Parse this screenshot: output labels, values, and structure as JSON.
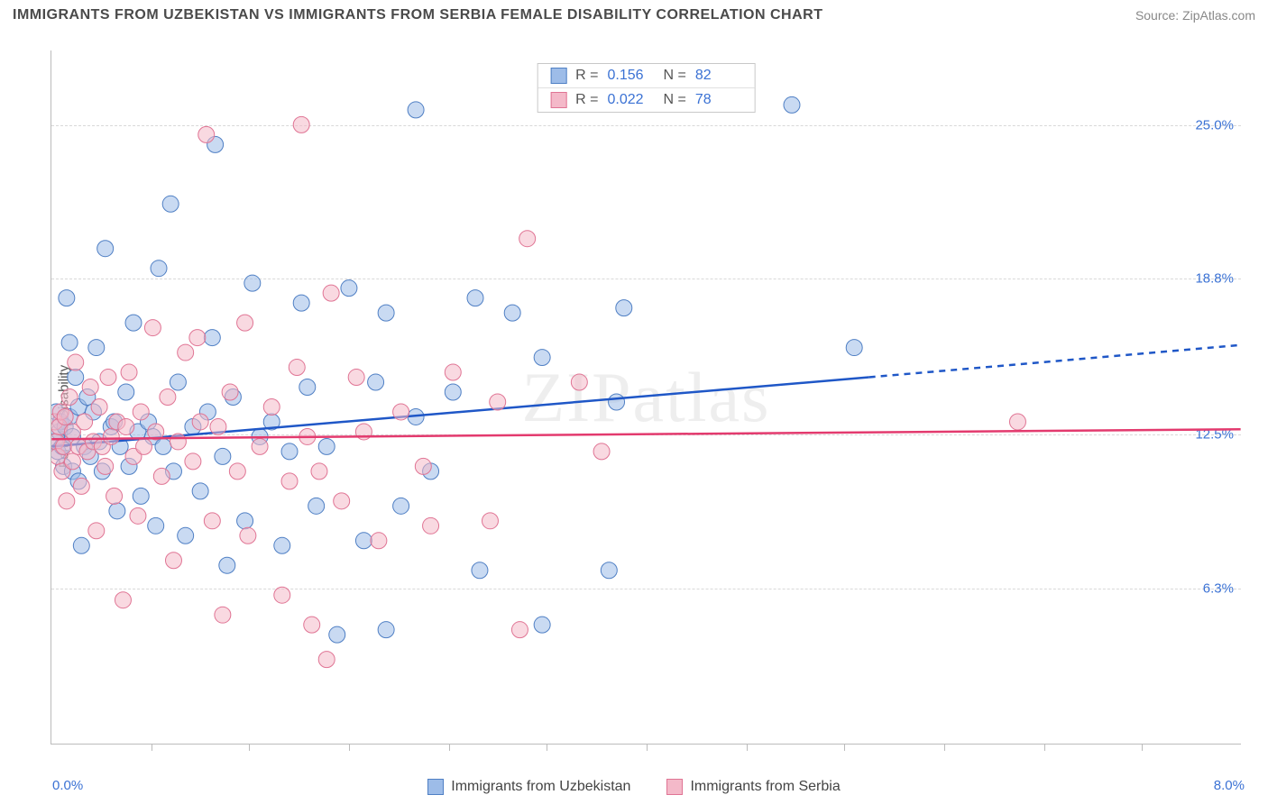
{
  "title": "IMMIGRANTS FROM UZBEKISTAN VS IMMIGRANTS FROM SERBIA FEMALE DISABILITY CORRELATION CHART",
  "source_label": "Source: ZipAtlas.com",
  "watermark": "ZIPatlas",
  "y_axis_label": "Female Disability",
  "chart": {
    "type": "scatter-with-regression",
    "xlim": [
      0.0,
      8.0
    ],
    "ylim": [
      0.0,
      28.0
    ],
    "x_min_label": "0.0%",
    "x_max_label": "8.0%",
    "y_ticks": [
      {
        "value": 6.3,
        "label": "6.3%"
      },
      {
        "value": 12.5,
        "label": "12.5%"
      },
      {
        "value": 18.8,
        "label": "18.8%"
      },
      {
        "value": 25.0,
        "label": "25.0%"
      }
    ],
    "x_tick_positions": [
      0.67,
      1.33,
      2.0,
      2.67,
      3.33,
      4.0,
      4.67,
      5.33,
      6.0,
      6.67,
      7.33
    ],
    "background_color": "#ffffff",
    "grid_color": "#d8d8d8",
    "axis_color": "#bbbbbb",
    "tick_label_color": "#3b72d4",
    "marker_radius": 9,
    "marker_opacity": 0.55,
    "line_width": 2.5,
    "series": [
      {
        "name": "Immigrants from Uzbekistan",
        "key": "uzbekistan",
        "fill": "#9dbce8",
        "stroke": "#4f7fc4",
        "line_color": "#1f57c7",
        "R": "0.156",
        "N": "82",
        "regression": {
          "x1": 0.0,
          "y1": 12.0,
          "x2": 5.5,
          "y2": 14.8,
          "x2_dash": 8.0,
          "y2_dash": 16.1
        },
        "points": [
          [
            0.02,
            12.2
          ],
          [
            0.03,
            13.4
          ],
          [
            0.04,
            11.8
          ],
          [
            0.05,
            12.6
          ],
          [
            0.06,
            13.0
          ],
          [
            0.07,
            12.0
          ],
          [
            0.08,
            11.2
          ],
          [
            0.09,
            12.8
          ],
          [
            0.1,
            18.0
          ],
          [
            0.12,
            16.2
          ],
          [
            0.12,
            13.2
          ],
          [
            0.14,
            11.0
          ],
          [
            0.14,
            12.4
          ],
          [
            0.16,
            14.8
          ],
          [
            0.18,
            10.6
          ],
          [
            0.18,
            13.6
          ],
          [
            0.2,
            8.0
          ],
          [
            0.22,
            12.0
          ],
          [
            0.24,
            14.0
          ],
          [
            0.26,
            11.6
          ],
          [
            0.28,
            13.4
          ],
          [
            0.3,
            16.0
          ],
          [
            0.32,
            12.2
          ],
          [
            0.34,
            11.0
          ],
          [
            0.36,
            20.0
          ],
          [
            0.4,
            12.8
          ],
          [
            0.42,
            13.0
          ],
          [
            0.44,
            9.4
          ],
          [
            0.46,
            12.0
          ],
          [
            0.5,
            14.2
          ],
          [
            0.52,
            11.2
          ],
          [
            0.55,
            17.0
          ],
          [
            0.58,
            12.6
          ],
          [
            0.6,
            10.0
          ],
          [
            0.65,
            13.0
          ],
          [
            0.68,
            12.4
          ],
          [
            0.7,
            8.8
          ],
          [
            0.72,
            19.2
          ],
          [
            0.75,
            12.0
          ],
          [
            0.8,
            21.8
          ],
          [
            0.82,
            11.0
          ],
          [
            0.85,
            14.6
          ],
          [
            0.9,
            8.4
          ],
          [
            0.95,
            12.8
          ],
          [
            1.0,
            10.2
          ],
          [
            1.05,
            13.4
          ],
          [
            1.08,
            16.4
          ],
          [
            1.1,
            24.2
          ],
          [
            1.15,
            11.6
          ],
          [
            1.18,
            7.2
          ],
          [
            1.22,
            14.0
          ],
          [
            1.3,
            9.0
          ],
          [
            1.35,
            18.6
          ],
          [
            1.4,
            12.4
          ],
          [
            1.48,
            13.0
          ],
          [
            1.55,
            8.0
          ],
          [
            1.6,
            11.8
          ],
          [
            1.68,
            17.8
          ],
          [
            1.72,
            14.4
          ],
          [
            1.78,
            9.6
          ],
          [
            1.85,
            12.0
          ],
          [
            1.92,
            4.4
          ],
          [
            2.0,
            18.4
          ],
          [
            2.1,
            8.2
          ],
          [
            2.18,
            14.6
          ],
          [
            2.25,
            17.4
          ],
          [
            2.25,
            4.6
          ],
          [
            2.35,
            9.6
          ],
          [
            2.45,
            13.2
          ],
          [
            2.45,
            25.6
          ],
          [
            2.55,
            11.0
          ],
          [
            2.7,
            14.2
          ],
          [
            2.85,
            18.0
          ],
          [
            2.88,
            7.0
          ],
          [
            3.1,
            17.4
          ],
          [
            3.3,
            15.6
          ],
          [
            3.3,
            4.8
          ],
          [
            3.75,
            7.0
          ],
          [
            3.8,
            13.8
          ],
          [
            3.85,
            17.6
          ],
          [
            4.98,
            25.8
          ],
          [
            5.4,
            16.0
          ]
        ]
      },
      {
        "name": "Immigrants from Serbia",
        "key": "serbia",
        "fill": "#f4b9c9",
        "stroke": "#e07494",
        "line_color": "#e33a6e",
        "R": "0.022",
        "N": "78",
        "regression": {
          "x1": 0.0,
          "y1": 12.3,
          "x2": 8.0,
          "y2": 12.7,
          "x2_dash": 8.0,
          "y2_dash": 12.7
        },
        "points": [
          [
            0.02,
            13.0
          ],
          [
            0.03,
            12.2
          ],
          [
            0.04,
            11.6
          ],
          [
            0.05,
            12.8
          ],
          [
            0.06,
            13.4
          ],
          [
            0.07,
            11.0
          ],
          [
            0.08,
            12.0
          ],
          [
            0.09,
            13.2
          ],
          [
            0.1,
            9.8
          ],
          [
            0.12,
            14.0
          ],
          [
            0.14,
            12.6
          ],
          [
            0.14,
            11.4
          ],
          [
            0.16,
            15.4
          ],
          [
            0.18,
            12.0
          ],
          [
            0.2,
            10.4
          ],
          [
            0.22,
            13.0
          ],
          [
            0.24,
            11.8
          ],
          [
            0.26,
            14.4
          ],
          [
            0.28,
            12.2
          ],
          [
            0.3,
            8.6
          ],
          [
            0.32,
            13.6
          ],
          [
            0.34,
            12.0
          ],
          [
            0.36,
            11.2
          ],
          [
            0.38,
            14.8
          ],
          [
            0.4,
            12.4
          ],
          [
            0.42,
            10.0
          ],
          [
            0.44,
            13.0
          ],
          [
            0.48,
            5.8
          ],
          [
            0.5,
            12.8
          ],
          [
            0.52,
            15.0
          ],
          [
            0.55,
            11.6
          ],
          [
            0.58,
            9.2
          ],
          [
            0.6,
            13.4
          ],
          [
            0.62,
            12.0
          ],
          [
            0.68,
            16.8
          ],
          [
            0.7,
            12.6
          ],
          [
            0.74,
            10.8
          ],
          [
            0.78,
            14.0
          ],
          [
            0.82,
            7.4
          ],
          [
            0.85,
            12.2
          ],
          [
            0.9,
            15.8
          ],
          [
            0.95,
            11.4
          ],
          [
            0.98,
            16.4
          ],
          [
            1.0,
            13.0
          ],
          [
            1.04,
            24.6
          ],
          [
            1.08,
            9.0
          ],
          [
            1.12,
            12.8
          ],
          [
            1.15,
            5.2
          ],
          [
            1.2,
            14.2
          ],
          [
            1.25,
            11.0
          ],
          [
            1.3,
            17.0
          ],
          [
            1.32,
            8.4
          ],
          [
            1.4,
            12.0
          ],
          [
            1.48,
            13.6
          ],
          [
            1.55,
            6.0
          ],
          [
            1.6,
            10.6
          ],
          [
            1.65,
            15.2
          ],
          [
            1.68,
            25.0
          ],
          [
            1.72,
            12.4
          ],
          [
            1.75,
            4.8
          ],
          [
            1.8,
            11.0
          ],
          [
            1.85,
            3.4
          ],
          [
            1.88,
            18.2
          ],
          [
            1.95,
            9.8
          ],
          [
            2.05,
            14.8
          ],
          [
            2.1,
            12.6
          ],
          [
            2.2,
            8.2
          ],
          [
            2.35,
            13.4
          ],
          [
            2.5,
            11.2
          ],
          [
            2.55,
            8.8
          ],
          [
            2.7,
            15.0
          ],
          [
            2.95,
            9.0
          ],
          [
            3.0,
            13.8
          ],
          [
            3.15,
            4.6
          ],
          [
            3.2,
            20.4
          ],
          [
            3.55,
            14.6
          ],
          [
            3.7,
            11.8
          ],
          [
            6.5,
            13.0
          ]
        ]
      }
    ]
  },
  "legend_bottom": [
    {
      "label": "Immigrants from Uzbekistan",
      "fill": "#9dbce8",
      "stroke": "#4f7fc4"
    },
    {
      "label": "Immigrants from Serbia",
      "fill": "#f4b9c9",
      "stroke": "#e07494"
    }
  ]
}
